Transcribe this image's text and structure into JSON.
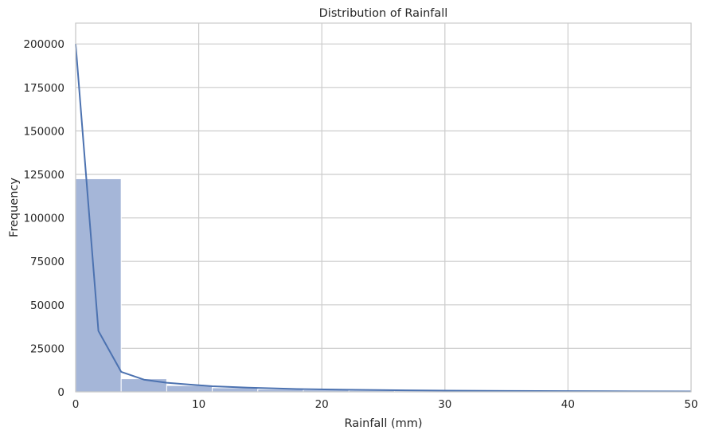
{
  "chart_data": {
    "type": "bar",
    "title": "Distribution of Rainfall",
    "xlabel": "Rainfall (mm)",
    "ylabel": "Frequency",
    "xlim": [
      0,
      50
    ],
    "ylim": [
      0,
      212000
    ],
    "grid": true,
    "x_ticks": [
      "0",
      "10",
      "20",
      "30",
      "40",
      "50"
    ],
    "y_ticks": [
      "0",
      "25000",
      "50000",
      "75000",
      "100000",
      "125000",
      "150000",
      "175000",
      "200000"
    ],
    "bin_width": 3.7,
    "bins": [
      {
        "x0": 0.0,
        "x1": 3.7,
        "count": 122500
      },
      {
        "x0": 3.7,
        "x1": 7.4,
        "count": 7500
      },
      {
        "x0": 7.4,
        "x1": 11.1,
        "count": 3600
      },
      {
        "x0": 11.1,
        "x1": 14.8,
        "count": 2300
      },
      {
        "x0": 14.8,
        "x1": 18.5,
        "count": 1500
      },
      {
        "x0": 18.5,
        "x1": 22.2,
        "count": 1100
      },
      {
        "x0": 22.2,
        "x1": 25.9,
        "count": 800
      },
      {
        "x0": 25.9,
        "x1": 29.6,
        "count": 600
      },
      {
        "x0": 29.6,
        "x1": 33.3,
        "count": 450
      },
      {
        "x0": 33.3,
        "x1": 37.0,
        "count": 350
      },
      {
        "x0": 37.0,
        "x1": 40.7,
        "count": 280
      },
      {
        "x0": 40.7,
        "x1": 44.4,
        "count": 220
      },
      {
        "x0": 44.4,
        "x1": 48.1,
        "count": 180
      },
      {
        "x0": 48.1,
        "x1": 51.8,
        "count": 150
      }
    ],
    "kde": {
      "x": [
        0,
        1.85,
        3.7,
        5.55,
        7.4,
        9.25,
        11.1,
        14.0,
        18.0,
        22.0,
        26.0,
        30.0,
        35.0,
        40.0,
        45.0,
        50.0
      ],
      "y": [
        200000,
        35000,
        11500,
        7000,
        5200,
        4200,
        3200,
        2400,
        1600,
        1200,
        900,
        700,
        500,
        400,
        300,
        250
      ]
    },
    "colors": {
      "bar_fill": "#a5b6d8",
      "bar_stroke": "#ffffff",
      "kde_line": "#4c72b0",
      "grid": "#cccccc",
      "axes_edge": "#cccccc"
    }
  }
}
